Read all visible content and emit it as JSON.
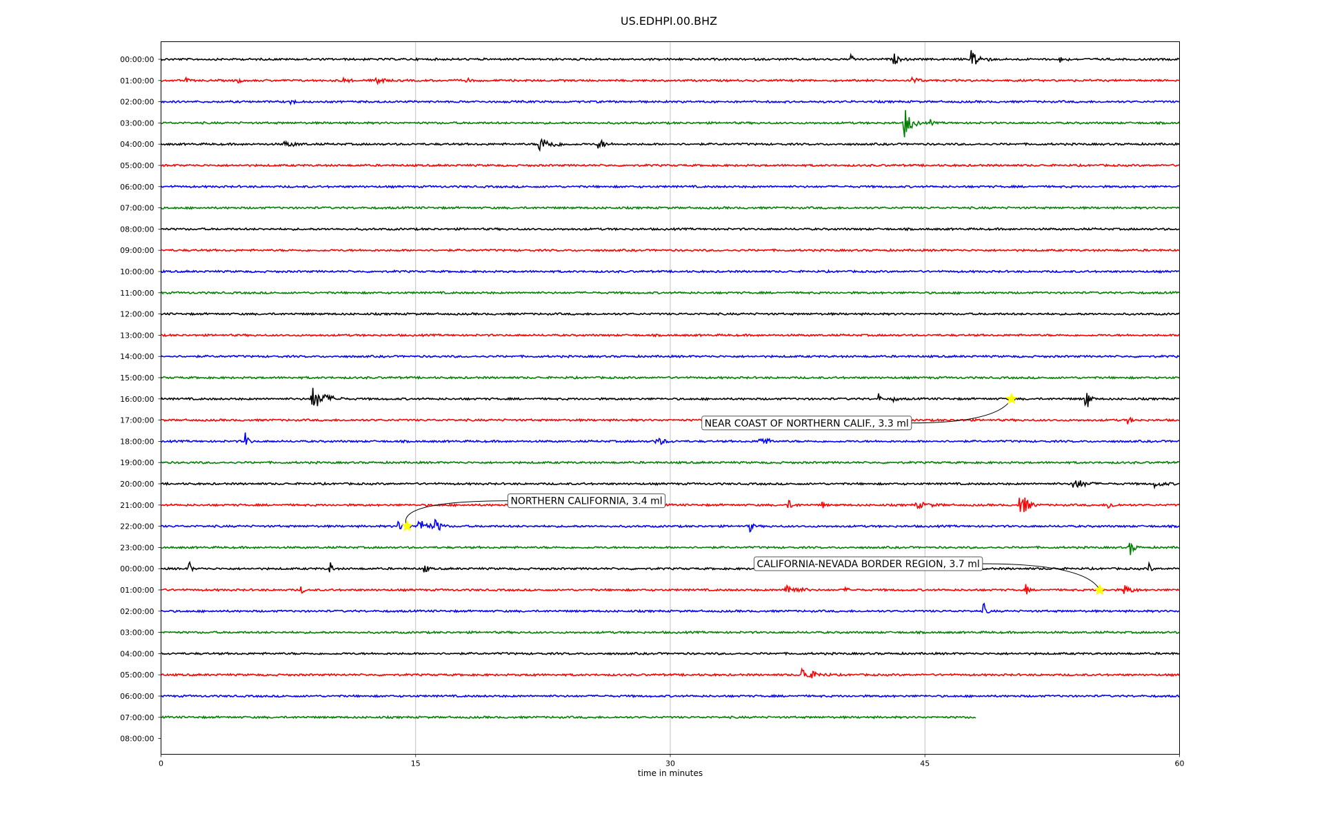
{
  "chart_data": {
    "type": "line",
    "title": "US.EDHPI.00.BHZ",
    "xlabel": "time in minutes",
    "xlim": [
      0,
      60
    ],
    "x_ticks": [
      0,
      15,
      30,
      45,
      60
    ],
    "row_labels": [
      "00:00:00",
      "01:00:00",
      "02:00:00",
      "03:00:00",
      "04:00:00",
      "05:00:00",
      "06:00:00",
      "07:00:00",
      "08:00:00",
      "09:00:00",
      "10:00:00",
      "11:00:00",
      "12:00:00",
      "13:00:00",
      "14:00:00",
      "15:00:00",
      "16:00:00",
      "17:00:00",
      "18:00:00",
      "19:00:00",
      "20:00:00",
      "21:00:00",
      "22:00:00",
      "23:00:00",
      "00:00:00",
      "01:00:00",
      "02:00:00",
      "03:00:00",
      "04:00:00",
      "05:00:00",
      "06:00:00",
      "07:00:00",
      "08:00:00"
    ],
    "trace_colors": [
      "#000000",
      "#ff0000",
      "#0000ff",
      "#008000"
    ],
    "last_trace_end_minute": 48,
    "grid": "vertical",
    "bursts": [
      {
        "row": 0,
        "minute": 40.7,
        "amp": 0.35,
        "dur": 0.4
      },
      {
        "row": 0,
        "minute": 43.2,
        "amp": 0.5,
        "dur": 0.8
      },
      {
        "row": 0,
        "minute": 47.8,
        "amp": 0.95,
        "dur": 1.2
      },
      {
        "row": 0,
        "minute": 53.0,
        "amp": 0.4,
        "dur": 0.6
      },
      {
        "row": 1,
        "minute": 1.5,
        "amp": 0.25,
        "dur": 0.3
      },
      {
        "row": 1,
        "minute": 4.6,
        "amp": 0.3,
        "dur": 0.3
      },
      {
        "row": 1,
        "minute": 10.7,
        "amp": 0.3,
        "dur": 0.8
      },
      {
        "row": 1,
        "minute": 12.7,
        "amp": 0.7,
        "dur": 0.8
      },
      {
        "row": 1,
        "minute": 18.0,
        "amp": 0.25,
        "dur": 0.5
      },
      {
        "row": 1,
        "minute": 44.3,
        "amp": 0.4,
        "dur": 0.7
      },
      {
        "row": 2,
        "minute": 7.7,
        "amp": 0.25,
        "dur": 0.6
      },
      {
        "row": 3,
        "minute": 43.8,
        "amp": 1.6,
        "dur": 1.0
      },
      {
        "row": 3,
        "minute": 45.3,
        "amp": 0.35,
        "dur": 0.4
      },
      {
        "row": 4,
        "minute": 7.3,
        "amp": 0.3,
        "dur": 1.5
      },
      {
        "row": 4,
        "minute": 22.3,
        "amp": 0.8,
        "dur": 1.8
      },
      {
        "row": 4,
        "minute": 25.8,
        "amp": 0.6,
        "dur": 0.8
      },
      {
        "row": 16,
        "minute": 8.9,
        "amp": 1.2,
        "dur": 2.0
      },
      {
        "row": 16,
        "minute": 42.3,
        "amp": 0.5,
        "dur": 0.3
      },
      {
        "row": 16,
        "minute": 43.2,
        "amp": 0.3,
        "dur": 0.4
      },
      {
        "row": 16,
        "minute": 54.5,
        "amp": 1.5,
        "dur": 0.5
      },
      {
        "row": 17,
        "minute": 57.0,
        "amp": 0.35,
        "dur": 0.5
      },
      {
        "row": 18,
        "minute": 5.0,
        "amp": 0.9,
        "dur": 0.4
      },
      {
        "row": 18,
        "minute": 29.2,
        "amp": 0.4,
        "dur": 1.2
      },
      {
        "row": 18,
        "minute": 35.3,
        "amp": 0.7,
        "dur": 1.0
      },
      {
        "row": 20,
        "minute": 53.8,
        "amp": 0.6,
        "dur": 1.5
      },
      {
        "row": 20,
        "minute": 58.6,
        "amp": 0.3,
        "dur": 1.2
      },
      {
        "row": 21,
        "minute": 37.0,
        "amp": 0.4,
        "dur": 0.8
      },
      {
        "row": 21,
        "minute": 39.0,
        "amp": 0.3,
        "dur": 0.3
      },
      {
        "row": 21,
        "minute": 44.5,
        "amp": 0.3,
        "dur": 2.0
      },
      {
        "row": 21,
        "minute": 50.6,
        "amp": 1.7,
        "dur": 1.0
      },
      {
        "row": 21,
        "minute": 55.8,
        "amp": 0.4,
        "dur": 0.8
      },
      {
        "row": 22,
        "minute": 14.0,
        "amp": 0.4,
        "dur": 1.2
      },
      {
        "row": 22,
        "minute": 15.2,
        "amp": 0.7,
        "dur": 1.5
      },
      {
        "row": 22,
        "minute": 16.2,
        "amp": 0.6,
        "dur": 0.8
      },
      {
        "row": 22,
        "minute": 34.7,
        "amp": 0.6,
        "dur": 0.4
      },
      {
        "row": 23,
        "minute": 57.1,
        "amp": 0.8,
        "dur": 0.6
      },
      {
        "row": 24,
        "minute": 1.7,
        "amp": 0.7,
        "dur": 0.3
      },
      {
        "row": 24,
        "minute": 10.0,
        "amp": 0.6,
        "dur": 0.4
      },
      {
        "row": 24,
        "minute": 15.5,
        "amp": 0.5,
        "dur": 0.5
      },
      {
        "row": 24,
        "minute": 58.2,
        "amp": 0.6,
        "dur": 0.3
      },
      {
        "row": 25,
        "minute": 8.3,
        "amp": 0.4,
        "dur": 0.3
      },
      {
        "row": 25,
        "minute": 36.8,
        "amp": 0.7,
        "dur": 1.6
      },
      {
        "row": 25,
        "minute": 40.3,
        "amp": 0.2,
        "dur": 0.5
      },
      {
        "row": 25,
        "minute": 51.0,
        "amp": 0.5,
        "dur": 0.3
      },
      {
        "row": 25,
        "minute": 56.8,
        "amp": 0.5,
        "dur": 1.0
      },
      {
        "row": 26,
        "minute": 48.5,
        "amp": 0.7,
        "dur": 0.4
      },
      {
        "row": 29,
        "minute": 21.8,
        "amp": 0.25,
        "dur": 0.4
      },
      {
        "row": 29,
        "minute": 37.8,
        "amp": 0.7,
        "dur": 1.8
      }
    ],
    "events": [
      {
        "label": "NEAR COAST OF NORTHERN CALIF., 3.3 ml",
        "row": 16,
        "minute": 50.1
      },
      {
        "label": "NORTHERN CALIFORNIA, 3.4 ml",
        "row": 22,
        "minute": 14.5
      },
      {
        "label": "CALIFORNIA-NEVADA BORDER REGION, 3.7 ml",
        "row": 25,
        "minute": 55.3
      }
    ],
    "event_marker_color": "#ffff00"
  }
}
